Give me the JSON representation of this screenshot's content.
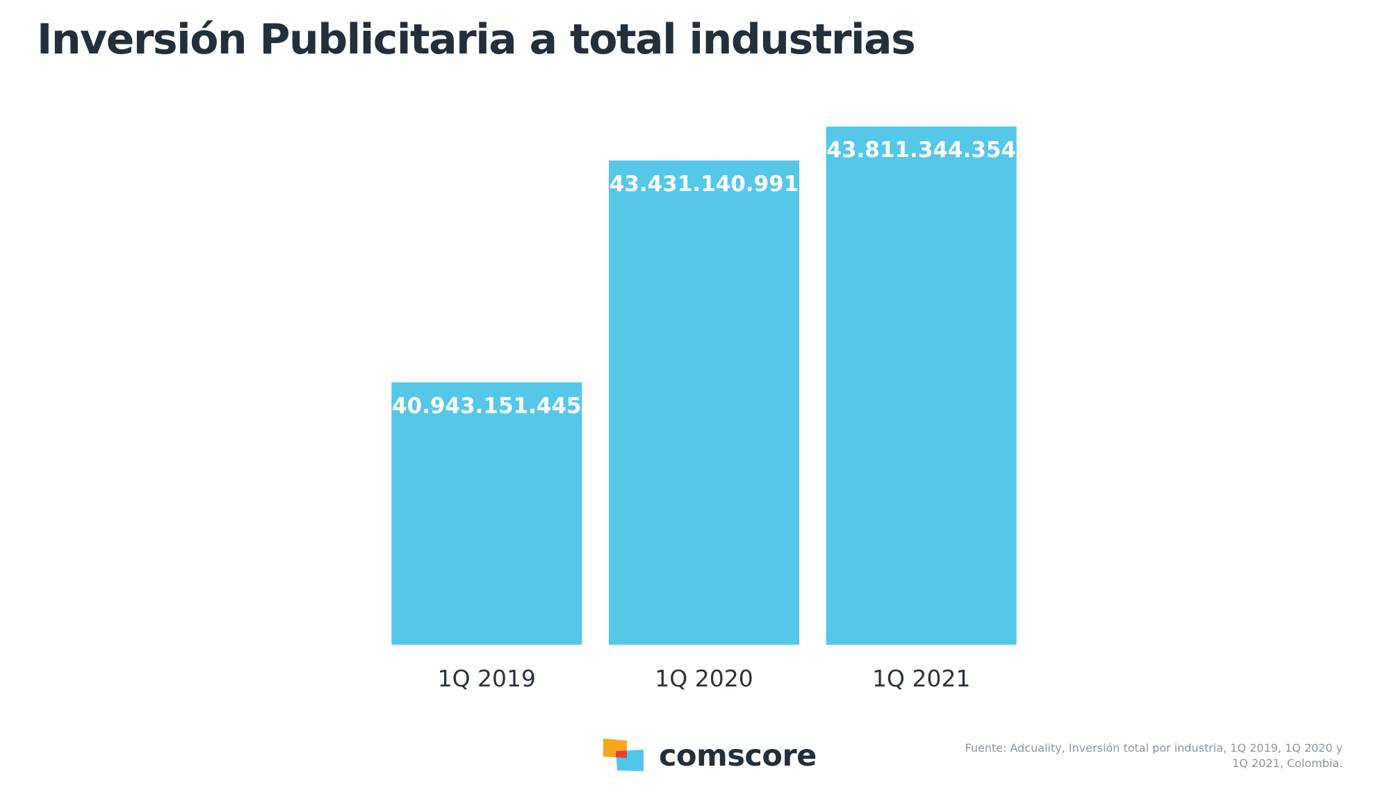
{
  "header": {
    "title": "Inversión Publicitaria a total industrias"
  },
  "colors": {
    "bar": "#55c7e9",
    "title": "#232f3a",
    "label_text": "#ffffff",
    "logo_orange": "#f7a51c",
    "logo_red": "#e8402f",
    "logo_blue": "#4fc7ea"
  },
  "chart_data": {
    "type": "bar",
    "title": "Inversión Publicitaria a total industrias",
    "xlabel": "",
    "ylabel": "",
    "categories": [
      "1Q 2019",
      "1Q 2020",
      "1Q 2021"
    ],
    "values": [
      40943151445,
      43431140991,
      43811344354
    ],
    "value_labels": [
      "40.943.151.445",
      "43.431.140.991",
      "43.811.344.354"
    ],
    "ylim": [
      38000000000,
      44000000000
    ],
    "grid": false,
    "legend": "none"
  },
  "footer": {
    "logo_icon": "comscore-logo-icon",
    "logo_text": "comscore",
    "source": "Fuente: Adcuality, Inversión total por industria, 1Q 2019, 1Q 2020 y 1Q 2021, Colombia."
  }
}
